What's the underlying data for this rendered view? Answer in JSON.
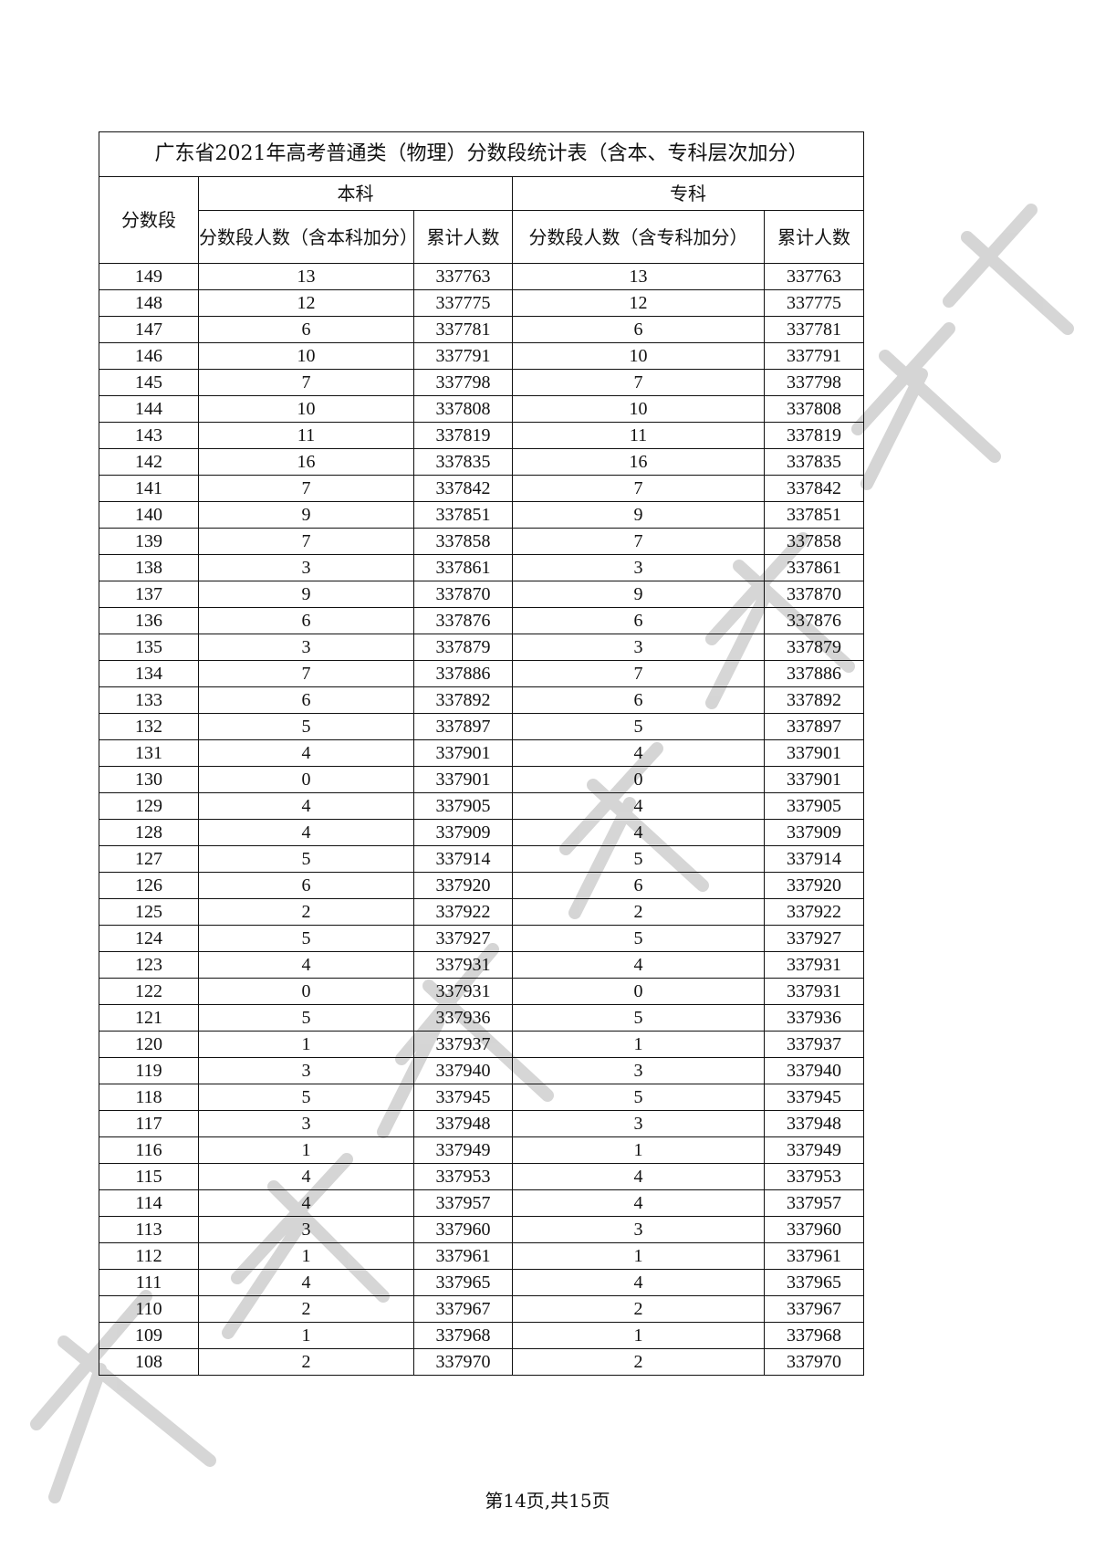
{
  "title": "广东省2021年高考普通类（物理）分数段统计表（含本、专科层次加分）",
  "headers": {
    "score": "分数段",
    "benke": "本科",
    "zhuanke": "专科",
    "benke_count": "分数段人数（含本科加分）",
    "benke_cum": "累计人数",
    "zhuanke_count": "分数段人数（含专科加分）",
    "zhuanke_cum": "累计人数"
  },
  "rows": [
    [
      "149",
      "13",
      "337763",
      "13",
      "337763"
    ],
    [
      "148",
      "12",
      "337775",
      "12",
      "337775"
    ],
    [
      "147",
      "6",
      "337781",
      "6",
      "337781"
    ],
    [
      "146",
      "10",
      "337791",
      "10",
      "337791"
    ],
    [
      "145",
      "7",
      "337798",
      "7",
      "337798"
    ],
    [
      "144",
      "10",
      "337808",
      "10",
      "337808"
    ],
    [
      "143",
      "11",
      "337819",
      "11",
      "337819"
    ],
    [
      "142",
      "16",
      "337835",
      "16",
      "337835"
    ],
    [
      "141",
      "7",
      "337842",
      "7",
      "337842"
    ],
    [
      "140",
      "9",
      "337851",
      "9",
      "337851"
    ],
    [
      "139",
      "7",
      "337858",
      "7",
      "337858"
    ],
    [
      "138",
      "3",
      "337861",
      "3",
      "337861"
    ],
    [
      "137",
      "9",
      "337870",
      "9",
      "337870"
    ],
    [
      "136",
      "6",
      "337876",
      "6",
      "337876"
    ],
    [
      "135",
      "3",
      "337879",
      "3",
      "337879"
    ],
    [
      "134",
      "7",
      "337886",
      "7",
      "337886"
    ],
    [
      "133",
      "6",
      "337892",
      "6",
      "337892"
    ],
    [
      "132",
      "5",
      "337897",
      "5",
      "337897"
    ],
    [
      "131",
      "4",
      "337901",
      "4",
      "337901"
    ],
    [
      "130",
      "0",
      "337901",
      "0",
      "337901"
    ],
    [
      "129",
      "4",
      "337905",
      "4",
      "337905"
    ],
    [
      "128",
      "4",
      "337909",
      "4",
      "337909"
    ],
    [
      "127",
      "5",
      "337914",
      "5",
      "337914"
    ],
    [
      "126",
      "6",
      "337920",
      "6",
      "337920"
    ],
    [
      "125",
      "2",
      "337922",
      "2",
      "337922"
    ],
    [
      "124",
      "5",
      "337927",
      "5",
      "337927"
    ],
    [
      "123",
      "4",
      "337931",
      "4",
      "337931"
    ],
    [
      "122",
      "0",
      "337931",
      "0",
      "337931"
    ],
    [
      "121",
      "5",
      "337936",
      "5",
      "337936"
    ],
    [
      "120",
      "1",
      "337937",
      "1",
      "337937"
    ],
    [
      "119",
      "3",
      "337940",
      "3",
      "337940"
    ],
    [
      "118",
      "5",
      "337945",
      "5",
      "337945"
    ],
    [
      "117",
      "3",
      "337948",
      "3",
      "337948"
    ],
    [
      "116",
      "1",
      "337949",
      "1",
      "337949"
    ],
    [
      "115",
      "4",
      "337953",
      "4",
      "337953"
    ],
    [
      "114",
      "4",
      "337957",
      "4",
      "337957"
    ],
    [
      "113",
      "3",
      "337960",
      "3",
      "337960"
    ],
    [
      "112",
      "1",
      "337961",
      "1",
      "337961"
    ],
    [
      "111",
      "4",
      "337965",
      "4",
      "337965"
    ],
    [
      "110",
      "2",
      "337967",
      "2",
      "337967"
    ],
    [
      "109",
      "1",
      "337968",
      "1",
      "337968"
    ],
    [
      "108",
      "2",
      "337970",
      "2",
      "337970"
    ]
  ],
  "footer": "第14页,共15页",
  "watermark": "广东省教育考试院",
  "watermark_color": "#c8c8c8"
}
